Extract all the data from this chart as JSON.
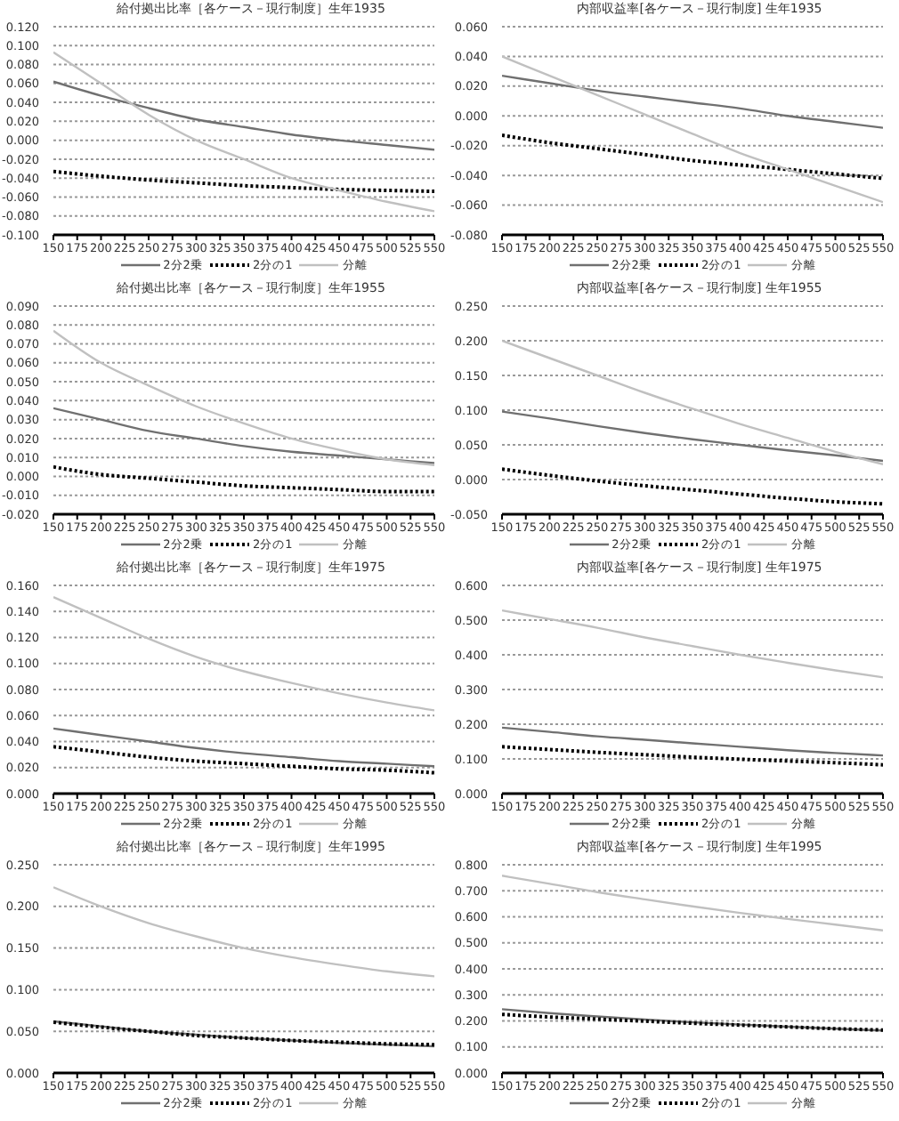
{
  "chart_data": [
    {
      "type": "line",
      "title": "給付拠出比率［各ケース－現行制度］生年1935",
      "x": [
        150,
        200,
        250,
        300,
        350,
        400,
        450,
        500,
        550
      ],
      "xlim": [
        150,
        550
      ],
      "xticks": [
        150,
        175,
        200,
        225,
        250,
        275,
        300,
        325,
        350,
        375,
        400,
        425,
        450,
        475,
        500,
        525,
        550
      ],
      "ylim": [
        -0.1,
        0.12
      ],
      "yticks": [
        {
          "value": -0.1,
          "label": "-0.100"
        },
        {
          "value": -0.08,
          "label": "-0.080"
        },
        {
          "value": -0.06,
          "label": "-0.060"
        },
        {
          "value": -0.04,
          "label": "-0.040"
        },
        {
          "value": -0.02,
          "label": "-0.020"
        },
        {
          "value": 0,
          "label": "0.000"
        },
        {
          "value": 0.02,
          "label": "0.020"
        },
        {
          "value": 0.04,
          "label": "0.040"
        },
        {
          "value": 0.06,
          "label": "0.060"
        },
        {
          "value": 0.08,
          "label": "0.080"
        },
        {
          "value": 0.1,
          "label": "0.100"
        },
        {
          "value": 0.12,
          "label": "0.120"
        }
      ],
      "grid": "y",
      "legend": "bottom",
      "marker": "none",
      "series": [
        {
          "name": "2分2乗",
          "color": "#707070",
          "line_style": "solid",
          "values": [
            0.062,
            0.047,
            0.034,
            0.022,
            0.014,
            0.006,
            0.0,
            -0.005,
            -0.01
          ]
        },
        {
          "name": "2分の1",
          "color": "#000000",
          "line_style": "dotted",
          "values": [
            -0.033,
            -0.038,
            -0.042,
            -0.045,
            -0.048,
            -0.05,
            -0.052,
            -0.053,
            -0.054
          ]
        },
        {
          "name": "分離",
          "color": "#c0c0c0",
          "line_style": "solid",
          "values": [
            0.093,
            0.06,
            0.027,
            0.0,
            -0.02,
            -0.04,
            -0.053,
            -0.065,
            -0.075
          ]
        }
      ]
    },
    {
      "type": "line",
      "title": "内部収益率[各ケース－現行制度] 生年1935",
      "x": [
        150,
        200,
        250,
        300,
        350,
        400,
        450,
        500,
        550
      ],
      "xlim": [
        150,
        550
      ],
      "xticks": [
        150,
        175,
        200,
        225,
        250,
        275,
        300,
        325,
        350,
        375,
        400,
        425,
        450,
        475,
        500,
        525,
        550
      ],
      "ylim": [
        -0.08,
        0.06
      ],
      "yticks": [
        {
          "value": -0.08,
          "label": "-0.080"
        },
        {
          "value": -0.06,
          "label": "-0.060"
        },
        {
          "value": -0.04,
          "label": "-0.040"
        },
        {
          "value": -0.02,
          "label": "-0.020"
        },
        {
          "value": 0,
          "label": "0.000"
        },
        {
          "value": 0.02,
          "label": "0.020"
        },
        {
          "value": 0.04,
          "label": "0.040"
        },
        {
          "value": 0.06,
          "label": "0.060"
        }
      ],
      "grid": "y",
      "legend": "bottom",
      "marker": "none",
      "series": [
        {
          "name": "2分2乗",
          "color": "#707070",
          "line_style": "solid",
          "values": [
            0.027,
            0.022,
            0.017,
            0.013,
            0.009,
            0.005,
            0.0,
            -0.004,
            -0.008
          ]
        },
        {
          "name": "2分の1",
          "color": "#000000",
          "line_style": "dotted",
          "values": [
            -0.013,
            -0.018,
            -0.022,
            -0.026,
            -0.03,
            -0.033,
            -0.036,
            -0.039,
            -0.042
          ]
        },
        {
          "name": "分離",
          "color": "#c0c0c0",
          "line_style": "solid",
          "values": [
            0.04,
            0.027,
            0.014,
            0.001,
            -0.012,
            -0.025,
            -0.036,
            -0.047,
            -0.058
          ]
        }
      ]
    },
    {
      "type": "line",
      "title": "給付拠出比率［各ケース－現行制度］生年1955",
      "x": [
        150,
        200,
        250,
        300,
        350,
        400,
        450,
        500,
        550
      ],
      "xlim": [
        150,
        550
      ],
      "xticks": [
        150,
        175,
        200,
        225,
        250,
        275,
        300,
        325,
        350,
        375,
        400,
        425,
        450,
        475,
        500,
        525,
        550
      ],
      "ylim": [
        -0.02,
        0.09
      ],
      "yticks": [
        {
          "value": -0.02,
          "label": "-0.020"
        },
        {
          "value": -0.01,
          "label": "-0.010"
        },
        {
          "value": 0,
          "label": "0.000"
        },
        {
          "value": 0.01,
          "label": "0.010"
        },
        {
          "value": 0.02,
          "label": "0.020"
        },
        {
          "value": 0.03,
          "label": "0.030"
        },
        {
          "value": 0.04,
          "label": "0.040"
        },
        {
          "value": 0.05,
          "label": "0.050"
        },
        {
          "value": 0.06,
          "label": "0.060"
        },
        {
          "value": 0.07,
          "label": "0.070"
        },
        {
          "value": 0.08,
          "label": "0.080"
        },
        {
          "value": 0.09,
          "label": "0.090"
        }
      ],
      "grid": "y",
      "legend": "bottom",
      "marker": "none",
      "series": [
        {
          "name": "2分2乗",
          "color": "#707070",
          "line_style": "solid",
          "values": [
            0.036,
            0.03,
            0.024,
            0.02,
            0.016,
            0.013,
            0.011,
            0.009,
            0.007
          ]
        },
        {
          "name": "2分の1",
          "color": "#000000",
          "line_style": "dotted",
          "values": [
            0.005,
            0.001,
            -0.001,
            -0.003,
            -0.005,
            -0.006,
            -0.007,
            -0.008,
            -0.008
          ]
        },
        {
          "name": "分離",
          "color": "#c0c0c0",
          "line_style": "solid",
          "values": [
            0.077,
            0.06,
            0.048,
            0.037,
            0.028,
            0.02,
            0.014,
            0.009,
            0.006
          ]
        }
      ]
    },
    {
      "type": "line",
      "title": "内部収益率[各ケース－現行制度] 生年1955",
      "x": [
        150,
        200,
        250,
        300,
        350,
        400,
        450,
        500,
        550
      ],
      "xlim": [
        150,
        550
      ],
      "xticks": [
        150,
        175,
        200,
        225,
        250,
        275,
        300,
        325,
        350,
        375,
        400,
        425,
        450,
        475,
        500,
        525,
        550
      ],
      "ylim": [
        -0.05,
        0.25
      ],
      "yticks": [
        {
          "value": -0.05,
          "label": "-0.050"
        },
        {
          "value": 0,
          "label": "0.000"
        },
        {
          "value": 0.05,
          "label": "0.050"
        },
        {
          "value": 0.1,
          "label": "0.100"
        },
        {
          "value": 0.15,
          "label": "0.150"
        },
        {
          "value": 0.2,
          "label": "0.200"
        },
        {
          "value": 0.25,
          "label": "0.250"
        }
      ],
      "grid": "y",
      "legend": "bottom",
      "marker": "none",
      "series": [
        {
          "name": "2分2乗",
          "color": "#707070",
          "line_style": "solid",
          "values": [
            0.098,
            0.088,
            0.077,
            0.067,
            0.058,
            0.05,
            0.042,
            0.035,
            0.027
          ]
        },
        {
          "name": "2分の1",
          "color": "#000000",
          "line_style": "dotted",
          "values": [
            0.015,
            0.006,
            -0.002,
            -0.009,
            -0.015,
            -0.021,
            -0.027,
            -0.032,
            -0.035
          ]
        },
        {
          "name": "分離",
          "color": "#c0c0c0",
          "line_style": "solid",
          "values": [
            0.2,
            0.175,
            0.15,
            0.125,
            0.102,
            0.08,
            0.06,
            0.04,
            0.022
          ]
        }
      ]
    },
    {
      "type": "line",
      "title": "給付拠出比率［各ケース－現行制度］生年1975",
      "x": [
        150,
        200,
        250,
        300,
        350,
        400,
        450,
        500,
        550
      ],
      "xlim": [
        150,
        550
      ],
      "xticks": [
        150,
        175,
        200,
        225,
        250,
        275,
        300,
        325,
        350,
        375,
        400,
        425,
        450,
        475,
        500,
        525,
        550
      ],
      "ylim": [
        0,
        0.16
      ],
      "yticks": [
        {
          "value": 0,
          "label": "0.000"
        },
        {
          "value": 0.02,
          "label": "0.020"
        },
        {
          "value": 0.04,
          "label": "0.040"
        },
        {
          "value": 0.06,
          "label": "0.060"
        },
        {
          "value": 0.08,
          "label": "0.080"
        },
        {
          "value": 0.1,
          "label": "0.100"
        },
        {
          "value": 0.12,
          "label": "0.120"
        },
        {
          "value": 0.14,
          "label": "0.140"
        },
        {
          "value": 0.16,
          "label": "0.160"
        }
      ],
      "grid": "y",
      "legend": "bottom",
      "marker": "none",
      "series": [
        {
          "name": "2分2乗",
          "color": "#707070",
          "line_style": "solid",
          "values": [
            0.05,
            0.045,
            0.04,
            0.035,
            0.031,
            0.028,
            0.025,
            0.023,
            0.021
          ]
        },
        {
          "name": "2分の1",
          "color": "#000000",
          "line_style": "dotted",
          "values": [
            0.036,
            0.032,
            0.028,
            0.025,
            0.023,
            0.021,
            0.019,
            0.018,
            0.016
          ]
        },
        {
          "name": "分離",
          "color": "#c0c0c0",
          "line_style": "solid",
          "values": [
            0.151,
            0.135,
            0.119,
            0.105,
            0.094,
            0.085,
            0.077,
            0.07,
            0.064
          ]
        }
      ]
    },
    {
      "type": "line",
      "title": "内部収益率[各ケース－現行制度] 生年1975",
      "x": [
        150,
        200,
        250,
        300,
        350,
        400,
        450,
        500,
        550
      ],
      "xlim": [
        150,
        550
      ],
      "xticks": [
        150,
        175,
        200,
        225,
        250,
        275,
        300,
        325,
        350,
        375,
        400,
        425,
        450,
        475,
        500,
        525,
        550
      ],
      "ylim": [
        0,
        0.6
      ],
      "yticks": [
        {
          "value": 0,
          "label": "0.000"
        },
        {
          "value": 0.1,
          "label": "0.100"
        },
        {
          "value": 0.2,
          "label": "0.200"
        },
        {
          "value": 0.3,
          "label": "0.300"
        },
        {
          "value": 0.4,
          "label": "0.400"
        },
        {
          "value": 0.5,
          "label": "0.500"
        },
        {
          "value": 0.6,
          "label": "0.600"
        }
      ],
      "grid": "y",
      "legend": "bottom",
      "marker": "none",
      "series": [
        {
          "name": "2分2乗",
          "color": "#707070",
          "line_style": "solid",
          "values": [
            0.19,
            0.178,
            0.165,
            0.155,
            0.145,
            0.135,
            0.125,
            0.117,
            0.11
          ]
        },
        {
          "name": "2分の1",
          "color": "#000000",
          "line_style": "dotted",
          "values": [
            0.135,
            0.127,
            0.119,
            0.112,
            0.105,
            0.099,
            0.094,
            0.089,
            0.083
          ]
        },
        {
          "name": "分離",
          "color": "#c0c0c0",
          "line_style": "solid",
          "values": [
            0.528,
            0.503,
            0.478,
            0.45,
            0.425,
            0.4,
            0.377,
            0.355,
            0.335
          ]
        }
      ]
    },
    {
      "type": "line",
      "title": "給付拠出比率［各ケース－現行制度］生年1995",
      "x": [
        150,
        200,
        250,
        300,
        350,
        400,
        450,
        500,
        550
      ],
      "xlim": [
        150,
        550
      ],
      "xticks": [
        150,
        175,
        200,
        225,
        250,
        275,
        300,
        325,
        350,
        375,
        400,
        425,
        450,
        475,
        500,
        525,
        550
      ],
      "ylim": [
        0,
        0.25
      ],
      "yticks": [
        {
          "value": 0,
          "label": "0.000"
        },
        {
          "value": 0.05,
          "label": "0.050"
        },
        {
          "value": 0.1,
          "label": "0.100"
        },
        {
          "value": 0.15,
          "label": "0.150"
        },
        {
          "value": 0.2,
          "label": "0.200"
        },
        {
          "value": 0.25,
          "label": "0.250"
        }
      ],
      "grid": "y",
      "legend": "bottom",
      "marker": "none",
      "series": [
        {
          "name": "2分2乗",
          "color": "#707070",
          "line_style": "solid",
          "values": [
            0.062,
            0.056,
            0.05,
            0.046,
            0.042,
            0.039,
            0.036,
            0.034,
            0.032
          ]
        },
        {
          "name": "2分の1",
          "color": "#000000",
          "line_style": "dotted",
          "values": [
            0.061,
            0.055,
            0.05,
            0.045,
            0.042,
            0.039,
            0.037,
            0.035,
            0.034
          ]
        },
        {
          "name": "分離",
          "color": "#c0c0c0",
          "line_style": "solid",
          "values": [
            0.223,
            0.2,
            0.18,
            0.164,
            0.15,
            0.139,
            0.13,
            0.122,
            0.116
          ]
        }
      ]
    },
    {
      "type": "line",
      "title": "内部収益率[各ケース－現行制度] 生年1995",
      "x": [
        150,
        200,
        250,
        300,
        350,
        400,
        450,
        500,
        550
      ],
      "xlim": [
        150,
        550
      ],
      "xticks": [
        150,
        175,
        200,
        225,
        250,
        275,
        300,
        325,
        350,
        375,
        400,
        425,
        450,
        475,
        500,
        525,
        550
      ],
      "ylim": [
        0,
        0.8
      ],
      "yticks": [
        {
          "value": 0,
          "label": "0.000"
        },
        {
          "value": 0.1,
          "label": "0.100"
        },
        {
          "value": 0.2,
          "label": "0.200"
        },
        {
          "value": 0.3,
          "label": "0.300"
        },
        {
          "value": 0.4,
          "label": "0.400"
        },
        {
          "value": 0.5,
          "label": "0.500"
        },
        {
          "value": 0.6,
          "label": "0.600"
        },
        {
          "value": 0.7,
          "label": "0.700"
        },
        {
          "value": 0.8,
          "label": "0.800"
        }
      ],
      "grid": "y",
      "legend": "bottom",
      "marker": "none",
      "series": [
        {
          "name": "2分2乗",
          "color": "#707070",
          "line_style": "solid",
          "values": [
            0.245,
            0.23,
            0.217,
            0.205,
            0.195,
            0.186,
            0.178,
            0.17,
            0.163
          ]
        },
        {
          "name": "2分の1",
          "color": "#000000",
          "line_style": "dotted",
          "values": [
            0.225,
            0.215,
            0.207,
            0.199,
            0.191,
            0.184,
            0.177,
            0.17,
            0.165
          ]
        },
        {
          "name": "分離",
          "color": "#c0c0c0",
          "line_style": "solid",
          "values": [
            0.758,
            0.727,
            0.695,
            0.667,
            0.64,
            0.615,
            0.592,
            0.57,
            0.548
          ]
        }
      ]
    }
  ]
}
